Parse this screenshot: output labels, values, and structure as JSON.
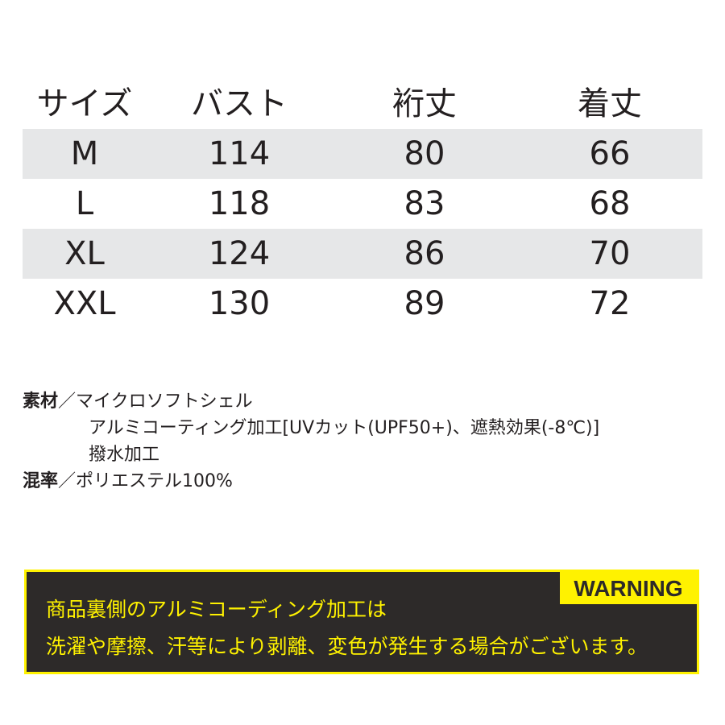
{
  "size_table": {
    "headers": [
      "サイズ",
      "バスト",
      "裄丈",
      "着丈"
    ],
    "rows": [
      [
        "M",
        "114",
        "80",
        "66"
      ],
      [
        "L",
        "118",
        "83",
        "68"
      ],
      [
        "XL",
        "124",
        "86",
        "70"
      ],
      [
        "XXL",
        "130",
        "89",
        "72"
      ]
    ]
  },
  "specs": {
    "material_label": "素材",
    "separator": "／",
    "material_lines": [
      "マイクロソフトシェル",
      "アルミコーティング加工[UVカット(UPF50+)、遮熱効果(-8℃)]",
      "撥水加工"
    ],
    "blend_label": "混率",
    "blend_value": "ポリエステル100%"
  },
  "warning": {
    "tag": "WARNING",
    "lines": [
      "商品裏側のアルミコーディング加工は",
      "洗濯や摩擦、汗等により剥離、変色が発生する場合がございます。"
    ],
    "colors": {
      "background": "#2d2a29",
      "accent": "#fff200"
    }
  }
}
